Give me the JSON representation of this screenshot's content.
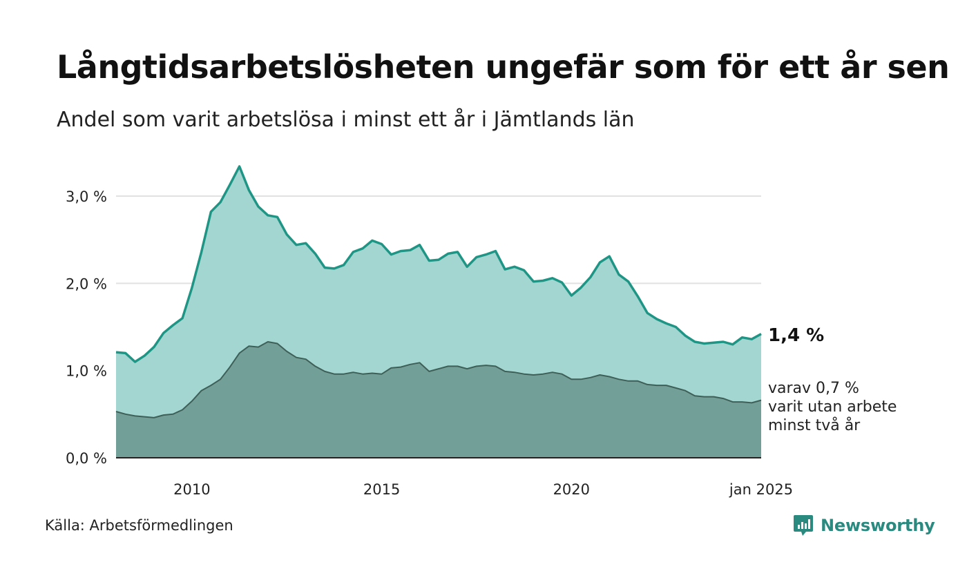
{
  "header": {
    "title": "Långtidsarbetslösheten ungefär som för ett år sen",
    "subtitle": "Andel som varit arbetslösa i minst ett år i Jämtlands län"
  },
  "footer": {
    "source": "Källa: Arbetsförmedlingen",
    "brand": "Newsworthy"
  },
  "colors": {
    "total_line": "#1e9585",
    "total_fill": "#a3d6d0",
    "sub_line": "#3e5f58",
    "sub_fill": "#729f98",
    "grid": "#e1e1e1",
    "baseline": "#222222",
    "brand": "#2a8a80"
  },
  "chart_data": {
    "type": "area",
    "title": "Långtidsarbetslösheten ungefär som för ett år sen",
    "subtitle": "Andel som varit arbetslösa i minst ett år i Jämtlands län",
    "xlabel": "",
    "ylabel": "",
    "x_range": [
      "2008-01",
      "2025-01"
    ],
    "xticks": [
      {
        "label": "2010",
        "year": 2010
      },
      {
        "label": "2015",
        "year": 2015
      },
      {
        "label": "2020",
        "year": 2020
      },
      {
        "label": "jan 2025",
        "year": 2025
      }
    ],
    "ylim": [
      0,
      3.0
    ],
    "yticks": [
      {
        "label": "0,0 %",
        "value": 0
      },
      {
        "label": "1,0 %",
        "value": 1.0
      },
      {
        "label": "2,0 %",
        "value": 2.0
      },
      {
        "label": "3,0 %",
        "value": 3.0
      }
    ],
    "grid": true,
    "end_labels": {
      "total": "1,4 %",
      "sub": [
        "varav 0,7 %",
        "varit utan arbete",
        "minst två år"
      ]
    },
    "series": [
      {
        "key": "total",
        "points": [
          [
            "2008-01",
            1.21
          ],
          [
            "2008-04",
            1.2
          ],
          [
            "2008-07",
            1.1
          ],
          [
            "2008-10",
            1.17
          ],
          [
            "2009-01",
            1.27
          ],
          [
            "2009-04",
            1.43
          ],
          [
            "2009-07",
            1.52
          ],
          [
            "2009-10",
            1.6
          ],
          [
            "2010-01",
            1.95
          ],
          [
            "2010-04",
            2.36
          ],
          [
            "2010-07",
            2.82
          ],
          [
            "2010-10",
            2.93
          ],
          [
            "2011-01",
            3.13
          ],
          [
            "2011-04",
            3.34
          ],
          [
            "2011-07",
            3.07
          ],
          [
            "2011-10",
            2.88
          ],
          [
            "2012-01",
            2.78
          ],
          [
            "2012-04",
            2.76
          ],
          [
            "2012-07",
            2.56
          ],
          [
            "2012-10",
            2.44
          ],
          [
            "2013-01",
            2.46
          ],
          [
            "2013-04",
            2.34
          ],
          [
            "2013-07",
            2.18
          ],
          [
            "2013-10",
            2.17
          ],
          [
            "2014-01",
            2.21
          ],
          [
            "2014-04",
            2.36
          ],
          [
            "2014-07",
            2.4
          ],
          [
            "2014-10",
            2.49
          ],
          [
            "2015-01",
            2.45
          ],
          [
            "2015-04",
            2.33
          ],
          [
            "2015-07",
            2.37
          ],
          [
            "2015-10",
            2.38
          ],
          [
            "2016-01",
            2.44
          ],
          [
            "2016-04",
            2.26
          ],
          [
            "2016-07",
            2.27
          ],
          [
            "2016-10",
            2.34
          ],
          [
            "2017-01",
            2.36
          ],
          [
            "2017-04",
            2.19
          ],
          [
            "2017-07",
            2.3
          ],
          [
            "2017-10",
            2.33
          ],
          [
            "2018-01",
            2.37
          ],
          [
            "2018-04",
            2.16
          ],
          [
            "2018-07",
            2.19
          ],
          [
            "2018-10",
            2.15
          ],
          [
            "2019-01",
            2.02
          ],
          [
            "2019-04",
            2.03
          ],
          [
            "2019-07",
            2.06
          ],
          [
            "2019-10",
            2.01
          ],
          [
            "2020-01",
            1.86
          ],
          [
            "2020-04",
            1.95
          ],
          [
            "2020-07",
            2.07
          ],
          [
            "2020-10",
            2.24
          ],
          [
            "2021-01",
            2.31
          ],
          [
            "2021-04",
            2.1
          ],
          [
            "2021-07",
            2.02
          ],
          [
            "2021-10",
            1.85
          ],
          [
            "2022-01",
            1.66
          ],
          [
            "2022-04",
            1.59
          ],
          [
            "2022-07",
            1.54
          ],
          [
            "2022-10",
            1.5
          ],
          [
            "2023-01",
            1.4
          ],
          [
            "2023-04",
            1.33
          ],
          [
            "2023-07",
            1.31
          ],
          [
            "2023-10",
            1.32
          ],
          [
            "2024-01",
            1.33
          ],
          [
            "2024-04",
            1.3
          ],
          [
            "2024-07",
            1.38
          ],
          [
            "2024-10",
            1.36
          ],
          [
            "2025-01",
            1.42
          ]
        ]
      },
      {
        "key": "sub",
        "points": [
          [
            "2008-01",
            0.53
          ],
          [
            "2008-04",
            0.5
          ],
          [
            "2008-07",
            0.48
          ],
          [
            "2008-10",
            0.47
          ],
          [
            "2009-01",
            0.46
          ],
          [
            "2009-04",
            0.49
          ],
          [
            "2009-07",
            0.5
          ],
          [
            "2009-10",
            0.55
          ],
          [
            "2010-01",
            0.65
          ],
          [
            "2010-04",
            0.77
          ],
          [
            "2010-07",
            0.83
          ],
          [
            "2010-10",
            0.9
          ],
          [
            "2011-01",
            1.04
          ],
          [
            "2011-04",
            1.2
          ],
          [
            "2011-07",
            1.28
          ],
          [
            "2011-10",
            1.27
          ],
          [
            "2012-01",
            1.33
          ],
          [
            "2012-04",
            1.31
          ],
          [
            "2012-07",
            1.22
          ],
          [
            "2012-10",
            1.15
          ],
          [
            "2013-01",
            1.13
          ],
          [
            "2013-04",
            1.05
          ],
          [
            "2013-07",
            0.99
          ],
          [
            "2013-10",
            0.96
          ],
          [
            "2014-01",
            0.96
          ],
          [
            "2014-04",
            0.98
          ],
          [
            "2014-07",
            0.96
          ],
          [
            "2014-10",
            0.97
          ],
          [
            "2015-01",
            0.96
          ],
          [
            "2015-04",
            1.03
          ],
          [
            "2015-07",
            1.04
          ],
          [
            "2015-10",
            1.07
          ],
          [
            "2016-01",
            1.09
          ],
          [
            "2016-04",
            0.99
          ],
          [
            "2016-07",
            1.02
          ],
          [
            "2016-10",
            1.05
          ],
          [
            "2017-01",
            1.05
          ],
          [
            "2017-04",
            1.02
          ],
          [
            "2017-07",
            1.05
          ],
          [
            "2017-10",
            1.06
          ],
          [
            "2018-01",
            1.05
          ],
          [
            "2018-04",
            0.99
          ],
          [
            "2018-07",
            0.98
          ],
          [
            "2018-10",
            0.96
          ],
          [
            "2019-01",
            0.95
          ],
          [
            "2019-04",
            0.96
          ],
          [
            "2019-07",
            0.98
          ],
          [
            "2019-10",
            0.96
          ],
          [
            "2020-01",
            0.9
          ],
          [
            "2020-04",
            0.9
          ],
          [
            "2020-07",
            0.92
          ],
          [
            "2020-10",
            0.95
          ],
          [
            "2021-01",
            0.93
          ],
          [
            "2021-04",
            0.9
          ],
          [
            "2021-07",
            0.88
          ],
          [
            "2021-10",
            0.88
          ],
          [
            "2022-01",
            0.84
          ],
          [
            "2022-04",
            0.83
          ],
          [
            "2022-07",
            0.83
          ],
          [
            "2022-10",
            0.8
          ],
          [
            "2023-01",
            0.77
          ],
          [
            "2023-04",
            0.71
          ],
          [
            "2023-07",
            0.7
          ],
          [
            "2023-10",
            0.7
          ],
          [
            "2024-01",
            0.68
          ],
          [
            "2024-04",
            0.64
          ],
          [
            "2024-07",
            0.64
          ],
          [
            "2024-10",
            0.63
          ],
          [
            "2025-01",
            0.66
          ]
        ]
      }
    ]
  }
}
